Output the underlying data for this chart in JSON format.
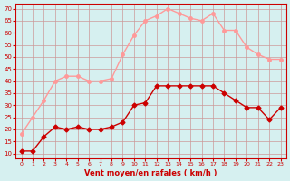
{
  "x": [
    0,
    1,
    2,
    3,
    4,
    5,
    6,
    7,
    8,
    9,
    10,
    11,
    12,
    13,
    14,
    15,
    16,
    17,
    18,
    19,
    20,
    21,
    22,
    23
  ],
  "vent_moyen": [
    11,
    11,
    17,
    21,
    20,
    21,
    20,
    20,
    21,
    23,
    30,
    31,
    38,
    38,
    38,
    38,
    38,
    38,
    35,
    32,
    29,
    29,
    24,
    29
  ],
  "vent_rafales": [
    18,
    25,
    32,
    40,
    42,
    42,
    40,
    40,
    41,
    51,
    59,
    65,
    67,
    70,
    68,
    66,
    65,
    68,
    61,
    61,
    54,
    51,
    49,
    49
  ],
  "color_moyen": "#cc0000",
  "color_rafales": "#ff9999",
  "bg_color": "#d6f0f0",
  "grid_color": "#cc9999",
  "xlabel": "Vent moyen/en rafales ( km/h )",
  "ylabel_ticks": [
    10,
    15,
    20,
    25,
    30,
    35,
    40,
    45,
    50,
    55,
    60,
    65,
    70
  ],
  "ylim": [
    8,
    72
  ],
  "xlim": [
    -0.5,
    23.5
  ]
}
